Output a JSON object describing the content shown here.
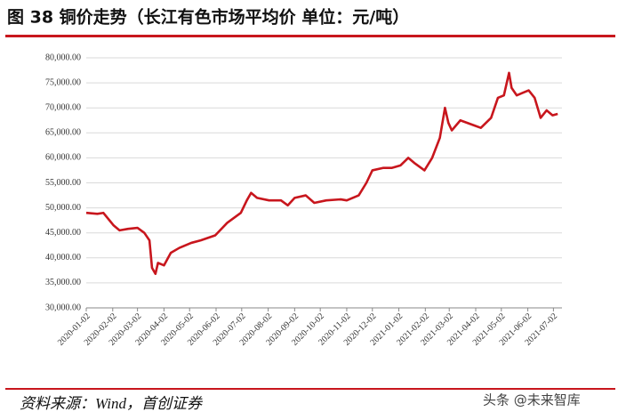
{
  "chart_data": {
    "type": "line",
    "title": "图 38  铜价走势（长江有色市场平均价  单位：元/吨）",
    "source": "资料来源：Wind，首创证券",
    "watermark": "头条 @未来智库",
    "x": [
      "2020-01-02",
      "2020-01-15",
      "2020-01-22",
      "2020-02-03",
      "2020-02-10",
      "2020-02-20",
      "2020-03-02",
      "2020-03-10",
      "2020-03-16",
      "2020-03-19",
      "2020-03-23",
      "2020-03-26",
      "2020-04-02",
      "2020-04-10",
      "2020-04-20",
      "2020-05-04",
      "2020-05-15",
      "2020-06-01",
      "2020-06-15",
      "2020-07-01",
      "2020-07-08",
      "2020-07-13",
      "2020-07-20",
      "2020-08-03",
      "2020-08-17",
      "2020-08-25",
      "2020-09-02",
      "2020-09-15",
      "2020-09-25",
      "2020-10-09",
      "2020-10-26",
      "2020-11-02",
      "2020-11-16",
      "2020-11-25",
      "2020-12-02",
      "2020-12-15",
      "2020-12-25",
      "2021-01-04",
      "2021-01-13",
      "2021-01-20",
      "2021-02-01",
      "2021-02-10",
      "2021-02-19",
      "2021-02-25",
      "2021-03-01",
      "2021-03-05",
      "2021-03-15",
      "2021-03-31",
      "2021-04-08",
      "2021-04-20",
      "2021-04-28",
      "2021-05-05",
      "2021-05-11",
      "2021-05-14",
      "2021-05-20",
      "2021-05-27",
      "2021-06-03",
      "2021-06-10",
      "2021-06-17",
      "2021-06-24",
      "2021-07-01",
      "2021-07-07"
    ],
    "series": [
      {
        "color": "#c8161d",
        "values": [
          49000,
          48800,
          49000,
          46500,
          45500,
          45800,
          46000,
          45000,
          43500,
          38000,
          36800,
          39000,
          38500,
          41000,
          42000,
          43000,
          43500,
          44500,
          47000,
          49000,
          51500,
          53000,
          52000,
          51500,
          51500,
          50500,
          52000,
          52500,
          51000,
          51500,
          51700,
          51500,
          52500,
          55000,
          57500,
          58000,
          58000,
          58500,
          60000,
          59000,
          57500,
          60000,
          64000,
          70000,
          67000,
          65500,
          67500,
          66500,
          66000,
          68000,
          72000,
          72500,
          77000,
          74000,
          72500,
          73000,
          73500,
          72000,
          68000,
          69500,
          68500,
          68800
        ]
      }
    ],
    "xlim": [
      "2020-01-02",
      "2021-07-12"
    ],
    "xticks": [
      "2020-01-02",
      "2020-02-02",
      "2020-03-02",
      "2020-04-02",
      "2020-05-02",
      "2020-06-02",
      "2020-07-02",
      "2020-08-02",
      "2020-09-02",
      "2020-10-02",
      "2020-11-02",
      "2020-12-02",
      "2021-01-02",
      "2021-02-02",
      "2021-03-02",
      "2021-04-02",
      "2021-05-02",
      "2021-06-02",
      "2021-07-02"
    ],
    "ylim": [
      30000,
      80000
    ],
    "yticks": [
      {
        "value": 30000,
        "label": "30,000.00"
      },
      {
        "value": 35000,
        "label": "35,000.00"
      },
      {
        "value": 40000,
        "label": "40,000.00"
      },
      {
        "value": 45000,
        "label": "45,000.00"
      },
      {
        "value": 50000,
        "label": "50,000.00"
      },
      {
        "value": 55000,
        "label": "55,000.00"
      },
      {
        "value": 60000,
        "label": "60,000.00"
      },
      {
        "value": 65000,
        "label": "65,000.00"
      },
      {
        "value": 70000,
        "label": "70,000.00"
      },
      {
        "value": 75000,
        "label": "75,000.00"
      },
      {
        "value": 80000,
        "label": "80,000.00"
      }
    ],
    "grid": true
  }
}
